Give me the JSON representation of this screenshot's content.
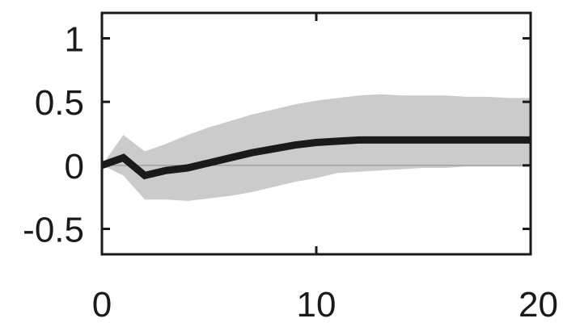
{
  "chart_data": {
    "type": "line",
    "title": "",
    "xlabel": "",
    "ylabel": "",
    "xlim": [
      0,
      20
    ],
    "ylim": [
      -0.7,
      1.2
    ],
    "xticks": [
      0,
      10,
      20
    ],
    "xtick_labels": [
      "0",
      "10",
      "20"
    ],
    "yticks": [
      -0.5,
      0,
      0.5,
      1
    ],
    "ytick_labels": [
      "-0.5",
      "0",
      "0.5",
      "1"
    ],
    "grid": false,
    "legend": "none",
    "zero_line": true,
    "x": [
      0,
      1,
      2,
      3,
      4,
      5,
      6,
      7,
      8,
      9,
      10,
      11,
      12,
      13,
      14,
      15,
      16,
      17,
      18,
      19,
      20
    ],
    "series": [
      {
        "values": [
          0.0,
          0.06,
          -0.08,
          -0.04,
          -0.02,
          0.02,
          0.06,
          0.1,
          0.13,
          0.16,
          0.18,
          0.19,
          0.2,
          0.2,
          0.2,
          0.2,
          0.2,
          0.2,
          0.2,
          0.2,
          0.2
        ],
        "lower": [
          0.0,
          -0.08,
          -0.27,
          -0.27,
          -0.28,
          -0.26,
          -0.24,
          -0.21,
          -0.17,
          -0.13,
          -0.1,
          -0.06,
          -0.05,
          -0.04,
          -0.03,
          -0.02,
          -0.02,
          -0.01,
          -0.01,
          -0.01,
          -0.01
        ],
        "upper": [
          0.0,
          0.24,
          0.11,
          0.17,
          0.24,
          0.3,
          0.35,
          0.4,
          0.44,
          0.48,
          0.51,
          0.53,
          0.55,
          0.56,
          0.55,
          0.55,
          0.55,
          0.54,
          0.54,
          0.53,
          0.53
        ]
      }
    ],
    "colors": {
      "line": "#1a1a1a",
      "band": "#cbcbcb",
      "zero_line": "#8c8c8c",
      "frame": "#1a1a1a"
    }
  }
}
